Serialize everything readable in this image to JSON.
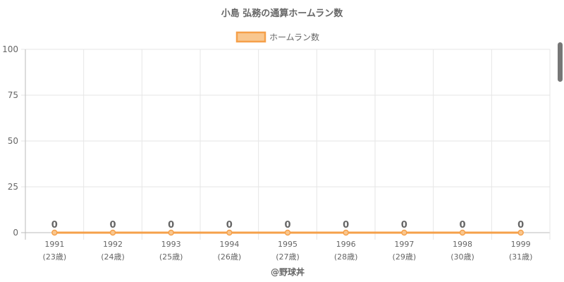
{
  "chart_data": {
    "type": "line",
    "title": "小島 弘務の通算ホームラン数",
    "categories": [
      "1991",
      "1992",
      "1993",
      "1994",
      "1995",
      "1996",
      "1997",
      "1998",
      "1999"
    ],
    "sublabels": [
      "(23歳)",
      "(24歳)",
      "(25歳)",
      "(26歳)",
      "(27歳)",
      "(28歳)",
      "(29歳)",
      "(30歳)",
      "(31歳)"
    ],
    "series": [
      {
        "name": "ホームラン数",
        "values": [
          0,
          0,
          0,
          0,
          0,
          0,
          0,
          0,
          0
        ]
      }
    ],
    "ylim": [
      0,
      100
    ],
    "yticks": [
      "0",
      "25",
      "50",
      "75",
      "100"
    ],
    "grid": true,
    "legend": "top-center",
    "data_labels": true,
    "colors": {
      "line": "#f5a04a",
      "legend_fill": "#f9c78f",
      "grid": "#e6e6e6",
      "axis": "#bbbbbb",
      "text": "#666666"
    }
  },
  "footer": {
    "credit": "@野球丼"
  }
}
